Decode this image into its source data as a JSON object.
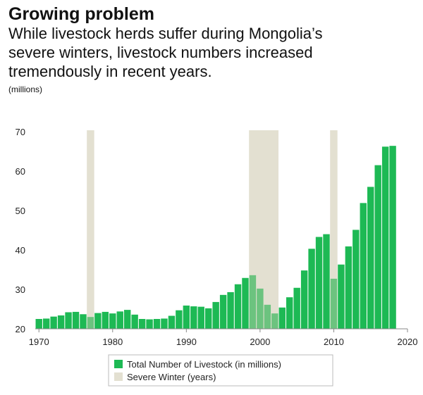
{
  "header": {
    "title": "Growing problem",
    "subtitle_lines": [
      "While livestock herds suffer during Mongolia’s",
      "severe winters, livestock numbers increased",
      "tremendously in recent years."
    ],
    "unit": "(millions)"
  },
  "colors": {
    "bar": "#1db954",
    "bar_in_winter": "#6cc37f",
    "winter_band": "#e3e0d1",
    "axis": "#888888",
    "grid": "#dcdcdc"
  },
  "chart_data": {
    "type": "bar",
    "title": "Growing problem",
    "x": [
      1970,
      1971,
      1972,
      1973,
      1974,
      1975,
      1976,
      1977,
      1978,
      1979,
      1980,
      1981,
      1982,
      1983,
      1984,
      1985,
      1986,
      1987,
      1988,
      1989,
      1990,
      1991,
      1992,
      1993,
      1994,
      1995,
      1996,
      1997,
      1998,
      1999,
      2000,
      2001,
      2002,
      2003,
      2004,
      2005,
      2006,
      2007,
      2008,
      2009,
      2010,
      2011,
      2012,
      2013,
      2014,
      2015,
      2016,
      2017,
      2018
    ],
    "series": [
      {
        "name": "Total Number of Livestock (in millions)",
        "values": [
          22.5,
          22.6,
          23.1,
          23.4,
          24.2,
          24.3,
          23.7,
          23.0,
          24.0,
          24.3,
          23.9,
          24.4,
          24.8,
          23.6,
          22.5,
          22.4,
          22.5,
          22.6,
          23.3,
          24.7,
          25.9,
          25.7,
          25.6,
          25.2,
          26.8,
          28.6,
          29.3,
          31.3,
          32.9,
          33.6,
          30.2,
          26.1,
          23.9,
          25.4,
          28.0,
          30.4,
          34.8,
          40.3,
          43.3,
          44.0,
          32.7,
          36.3,
          40.9,
          45.1,
          51.9,
          56.0,
          61.5,
          66.2,
          66.4
        ]
      }
    ],
    "severe_winters": [
      {
        "start": 1976.5,
        "end": 1977.5
      },
      {
        "start": 1998.5,
        "end": 2002.5
      },
      {
        "start": 2009.5,
        "end": 2010.5
      }
    ],
    "xlim": [
      1969.5,
      2020
    ],
    "ylim": [
      20,
      70
    ],
    "x_ticks": [
      1970,
      1980,
      1990,
      2000,
      2010,
      2020
    ],
    "y_ticks": [
      20,
      30,
      40,
      50,
      60,
      70
    ],
    "legend": {
      "placement": "bottom",
      "entries": [
        {
          "label": "Total Number of Livestock (in millions)",
          "color": "#1db954"
        },
        {
          "label": "Severe Winter (years)",
          "color": "#e3e0d1"
        }
      ]
    },
    "grid": false
  }
}
